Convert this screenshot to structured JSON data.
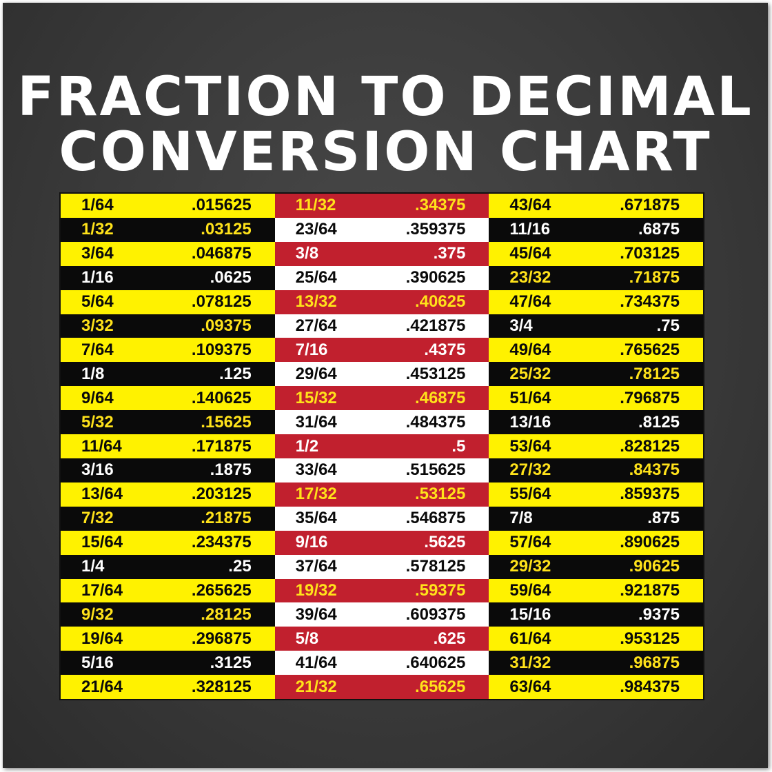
{
  "title": {
    "line1": "FRACTION TO DECIMAL",
    "line2": "CONVERSION CHART"
  },
  "table": {
    "columns": [
      [
        [
          "1/64",
          ".015625"
        ],
        [
          "1/32",
          ".03125"
        ],
        [
          "3/64",
          ".046875"
        ],
        [
          "1/16",
          ".0625"
        ],
        [
          "5/64",
          ".078125"
        ],
        [
          "3/32",
          ".09375"
        ],
        [
          "7/64",
          ".109375"
        ],
        [
          "1/8",
          ".125"
        ],
        [
          "9/64",
          ".140625"
        ],
        [
          "5/32",
          ".15625"
        ],
        [
          "11/64",
          ".171875"
        ],
        [
          "3/16",
          ".1875"
        ],
        [
          "13/64",
          ".203125"
        ],
        [
          "7/32",
          ".21875"
        ],
        [
          "15/64",
          ".234375"
        ],
        [
          "1/4",
          ".25"
        ],
        [
          "17/64",
          ".265625"
        ],
        [
          "9/32",
          ".28125"
        ],
        [
          "19/64",
          ".296875"
        ],
        [
          "5/16",
          ".3125"
        ],
        [
          "21/64",
          ".328125"
        ]
      ],
      [
        [
          "11/32",
          ".34375"
        ],
        [
          "23/64",
          ".359375"
        ],
        [
          "3/8",
          ".375"
        ],
        [
          "25/64",
          ".390625"
        ],
        [
          "13/32",
          ".40625"
        ],
        [
          "27/64",
          ".421875"
        ],
        [
          "7/16",
          ".4375"
        ],
        [
          "29/64",
          ".453125"
        ],
        [
          "15/32",
          ".46875"
        ],
        [
          "31/64",
          ".484375"
        ],
        [
          "1/2",
          ".5"
        ],
        [
          "33/64",
          ".515625"
        ],
        [
          "17/32",
          ".53125"
        ],
        [
          "35/64",
          ".546875"
        ],
        [
          "9/16",
          ".5625"
        ],
        [
          "37/64",
          ".578125"
        ],
        [
          "19/32",
          ".59375"
        ],
        [
          "39/64",
          ".609375"
        ],
        [
          "5/8",
          ".625"
        ],
        [
          "41/64",
          ".640625"
        ],
        [
          "21/32",
          ".65625"
        ]
      ],
      [
        [
          "43/64",
          ".671875"
        ],
        [
          "11/16",
          ".6875"
        ],
        [
          "45/64",
          ".703125"
        ],
        [
          "23/32",
          ".71875"
        ],
        [
          "47/64",
          ".734375"
        ],
        [
          "3/4",
          ".75"
        ],
        [
          "49/64",
          ".765625"
        ],
        [
          "25/32",
          ".78125"
        ],
        [
          "51/64",
          ".796875"
        ],
        [
          "13/16",
          ".8125"
        ],
        [
          "53/64",
          ".828125"
        ],
        [
          "27/32",
          ".84375"
        ],
        [
          "55/64",
          ".859375"
        ],
        [
          "7/8",
          ".875"
        ],
        [
          "57/64",
          ".890625"
        ],
        [
          "29/32",
          ".90625"
        ],
        [
          "59/64",
          ".921875"
        ],
        [
          "15/16",
          ".9375"
        ],
        [
          "61/64",
          ".953125"
        ],
        [
          "31/32",
          ".96875"
        ],
        [
          "63/64",
          ".984375"
        ]
      ]
    ]
  }
}
